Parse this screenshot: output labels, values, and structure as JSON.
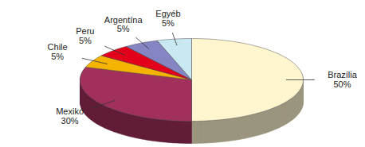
{
  "chart_data": {
    "type": "pie",
    "categories": [
      "Brazília",
      "Mexikó",
      "Chile",
      "Peru",
      "Argentína",
      "Egyéb"
    ],
    "values": [
      50,
      30,
      5,
      5,
      5,
      5
    ],
    "value_labels": [
      "50%",
      "30%",
      "5%",
      "5%",
      "5%",
      "5%"
    ],
    "colors": [
      "#fff6cf",
      "#a2305c",
      "#f4b400",
      "#e2001a",
      "#8585c4",
      "#c9e9f2"
    ],
    "data_labels": true
  }
}
